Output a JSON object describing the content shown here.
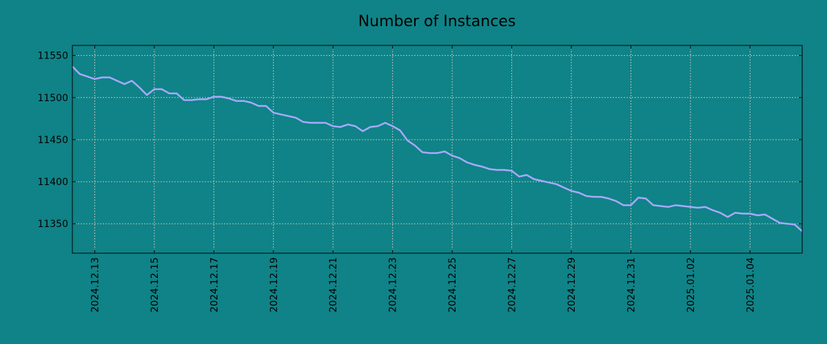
{
  "chart_data": {
    "type": "line",
    "title": "Number of Instances",
    "xlabel": "",
    "ylabel": "",
    "x_range": [
      "2024-12-12 06:00",
      "2025-01-05 18:00"
    ],
    "ylim": [
      11315,
      11562
    ],
    "y_ticks": [
      11350,
      11400,
      11450,
      11500,
      11550
    ],
    "x_ticks": [
      "2024.12.13",
      "2024.12.15",
      "2024.12.17",
      "2024.12.19",
      "2024.12.21",
      "2024.12.23",
      "2024.12.25",
      "2024.12.27",
      "2024.12.29",
      "2024.12.31",
      "2025.01.02",
      "2025.01.04"
    ],
    "x_tick_dates": [
      "2024-12-13",
      "2024-12-15",
      "2024-12-17",
      "2024-12-19",
      "2024-12-21",
      "2024-12-23",
      "2024-12-25",
      "2024-12-27",
      "2024-12-29",
      "2024-12-31",
      "2025-01-02",
      "2025-01-04"
    ],
    "grid": true,
    "colors": {
      "background": "#0f8387",
      "line": "#a9a9ff",
      "grid": "#bfbfbf",
      "axes": "#000000"
    },
    "series": [
      {
        "x": [
          "2024-12-12 06:00",
          "2024-12-12 12:00",
          "2024-12-12 18:00",
          "2024-12-13 00:00",
          "2024-12-13 06:00",
          "2024-12-13 12:00",
          "2024-12-13 18:00",
          "2024-12-14 00:00",
          "2024-12-14 06:00",
          "2024-12-14 12:00",
          "2024-12-14 18:00",
          "2024-12-15 00:00",
          "2024-12-15 06:00",
          "2024-12-15 12:00",
          "2024-12-15 18:00",
          "2024-12-16 00:00",
          "2024-12-16 06:00",
          "2024-12-16 12:00",
          "2024-12-16 18:00",
          "2024-12-17 00:00",
          "2024-12-17 06:00",
          "2024-12-17 12:00",
          "2024-12-17 18:00",
          "2024-12-18 00:00",
          "2024-12-18 06:00",
          "2024-12-18 12:00",
          "2024-12-18 18:00",
          "2024-12-19 00:00",
          "2024-12-19 06:00",
          "2024-12-19 12:00",
          "2024-12-19 18:00",
          "2024-12-20 00:00",
          "2024-12-20 06:00",
          "2024-12-20 12:00",
          "2024-12-20 18:00",
          "2024-12-21 00:00",
          "2024-12-21 06:00",
          "2024-12-21 12:00",
          "2024-12-21 18:00",
          "2024-12-22 00:00",
          "2024-12-22 06:00",
          "2024-12-22 12:00",
          "2024-12-22 18:00",
          "2024-12-23 00:00",
          "2024-12-23 06:00",
          "2024-12-23 12:00",
          "2024-12-23 18:00",
          "2024-12-24 00:00",
          "2024-12-24 06:00",
          "2024-12-24 12:00",
          "2024-12-24 18:00",
          "2024-12-25 00:00",
          "2024-12-25 06:00",
          "2024-12-25 12:00",
          "2024-12-25 18:00",
          "2024-12-26 00:00",
          "2024-12-26 06:00",
          "2024-12-26 12:00",
          "2024-12-26 18:00",
          "2024-12-27 00:00",
          "2024-12-27 06:00",
          "2024-12-27 12:00",
          "2024-12-27 18:00",
          "2024-12-28 00:00",
          "2024-12-28 06:00",
          "2024-12-28 12:00",
          "2024-12-28 18:00",
          "2024-12-29 00:00",
          "2024-12-29 06:00",
          "2024-12-29 12:00",
          "2024-12-29 18:00",
          "2024-12-30 00:00",
          "2024-12-30 06:00",
          "2024-12-30 12:00",
          "2024-12-30 18:00",
          "2024-12-31 00:00",
          "2024-12-31 06:00",
          "2024-12-31 12:00",
          "2024-12-31 18:00",
          "2025-01-01 00:00",
          "2025-01-01 06:00",
          "2025-01-01 12:00",
          "2025-01-01 18:00",
          "2025-01-02 00:00",
          "2025-01-02 06:00",
          "2025-01-02 12:00",
          "2025-01-02 18:00",
          "2025-01-03 00:00",
          "2025-01-03 06:00",
          "2025-01-03 12:00",
          "2025-01-03 18:00",
          "2025-01-04 00:00",
          "2025-01-04 06:00",
          "2025-01-04 12:00",
          "2025-01-04 18:00",
          "2025-01-05 00:00",
          "2025-01-05 06:00",
          "2025-01-05 12:00",
          "2025-01-05 18:00"
        ],
        "values": [
          11537,
          11528,
          11525,
          11522,
          11524,
          11524,
          11520,
          11516,
          11520,
          11512,
          11503,
          11510,
          11510,
          11505,
          11505,
          11497,
          11497,
          11498,
          11498,
          11501,
          11501,
          11499,
          11496,
          11496,
          11494,
          11490,
          11490,
          11482,
          11480,
          11478,
          11476,
          11471,
          11470,
          11470,
          11470,
          11466,
          11465,
          11468,
          11466,
          11460,
          11465,
          11466,
          11470,
          11466,
          11461,
          11449,
          11443,
          11435,
          11434,
          11434,
          11436,
          11431,
          11428,
          11423,
          11420,
          11418,
          11415,
          11414,
          11414,
          11413,
          11406,
          11408,
          11403,
          11401,
          11399,
          11397,
          11393,
          11389,
          11387,
          11383,
          11382,
          11382,
          11380,
          11377,
          11372,
          11372,
          11381,
          11380,
          11372,
          11371,
          11370,
          11372,
          11371,
          11370,
          11369,
          11370,
          11366,
          11363,
          11358,
          11363,
          11362,
          11362,
          11360,
          11361,
          11356,
          11351,
          11350,
          11349,
          11341
        ]
      }
    ]
  }
}
